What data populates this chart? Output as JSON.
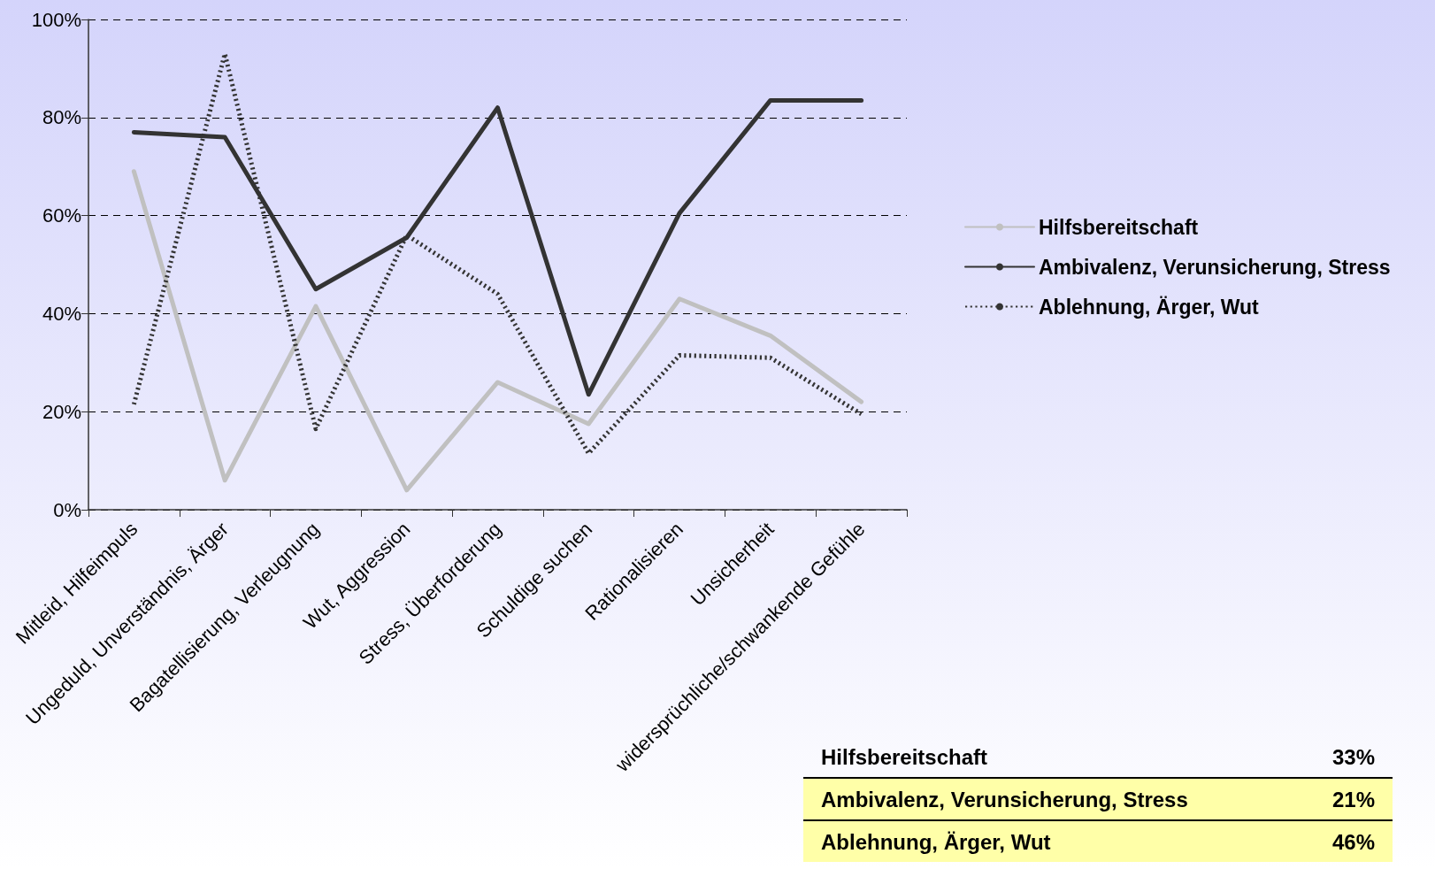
{
  "chart_data": {
    "type": "line",
    "categories": [
      "Mitleid, Hilfeimpuls",
      "Ungeduld, Unverständnis, Ärger",
      "Bagatellisierung, Verleugnung",
      "Wut, Aggression",
      "Stress, Überforderung",
      "Schuldige suchen",
      "Rationalisieren",
      "Unsicherheit",
      "widersprüchliche/schwankende Gefühle"
    ],
    "series": [
      {
        "name": "Hilfsbereitschaft",
        "color": "#c0c0c0",
        "line_style": "solid",
        "values": [
          69,
          6,
          41.5,
          4,
          26,
          17.5,
          43,
          35.5,
          22
        ]
      },
      {
        "name": "Ambivalenz, Verunsicherung, Stress",
        "color": "#333333",
        "line_style": "solid",
        "values": [
          77,
          76,
          45,
          55.5,
          82,
          23.5,
          60.5,
          83.5,
          83.5
        ]
      },
      {
        "name": "Ablehnung, Ärger, Wut",
        "color": "#333333",
        "line_style": "dashed",
        "values": [
          21.5,
          93,
          16.5,
          56,
          44,
          11.5,
          31.5,
          31,
          19.5
        ]
      }
    ],
    "ylim": [
      0,
      100
    ],
    "yticks": [
      {
        "value": 0,
        "label": "0%"
      },
      {
        "value": 20,
        "label": "20%"
      },
      {
        "value": 40,
        "label": "40%"
      },
      {
        "value": 60,
        "label": "60%"
      },
      {
        "value": 80,
        "label": "80%"
      },
      {
        "value": 100,
        "label": "100%"
      }
    ],
    "grid": "y",
    "legend": "right",
    "marker": "none",
    "annotations": [
      "Hilfsbereitschaft",
      "33%",
      "Ambivalenz, Verunsicherung, Stress",
      "21%",
      "Ablehnung, Ärger, Wut",
      "46%"
    ]
  }
}
